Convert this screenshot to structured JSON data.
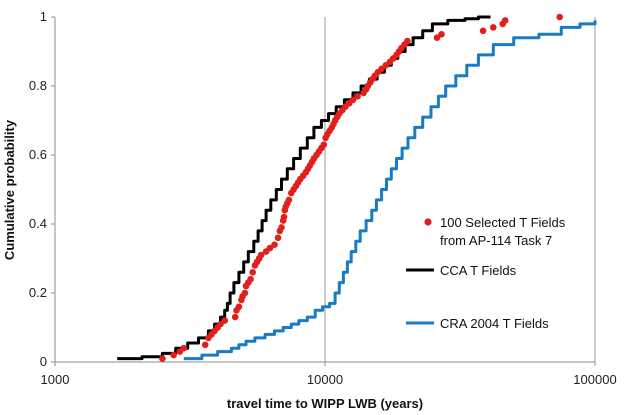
{
  "chart_data": {
    "type": "line",
    "xlabel": "travel time to WIPP LWB (years)",
    "ylabel": "Cumulative probability",
    "xscale": "log",
    "xlim": [
      1000,
      100000
    ],
    "ylim": [
      0,
      1
    ],
    "x_ticks": [
      {
        "value": 1000,
        "label": "1000"
      },
      {
        "value": 10000,
        "label": "10000"
      },
      {
        "value": 100000,
        "label": "100000"
      }
    ],
    "y_ticks": [
      {
        "value": 0,
        "label": "0"
      },
      {
        "value": 0.2,
        "label": "0.2"
      },
      {
        "value": 0.4,
        "label": "0.4"
      },
      {
        "value": 0.6,
        "label": "0.6"
      },
      {
        "value": 0.8,
        "label": "0.8"
      },
      {
        "value": 1,
        "label": "1"
      }
    ],
    "grid": {
      "x": true,
      "y": false
    },
    "legend_position": "right",
    "series": [
      {
        "name": "100 Selected T Fields from AP-114 Task 7",
        "legend_lines": [
          "100 Selected T Fields",
          "from AP-114 Task 7"
        ],
        "kind": "scatter",
        "color": "#e0201b",
        "points": [
          [
            2500,
            0.01
          ],
          [
            2750,
            0.02
          ],
          [
            2900,
            0.03
          ],
          [
            3000,
            0.04
          ],
          [
            3600,
            0.05
          ],
          [
            3700,
            0.07
          ],
          [
            3800,
            0.08
          ],
          [
            3900,
            0.09
          ],
          [
            4000,
            0.1
          ],
          [
            4100,
            0.11
          ],
          [
            4250,
            0.12
          ],
          [
            4650,
            0.13
          ],
          [
            4700,
            0.15
          ],
          [
            4800,
            0.16
          ],
          [
            4900,
            0.18
          ],
          [
            4950,
            0.19
          ],
          [
            5050,
            0.2
          ],
          [
            5100,
            0.22
          ],
          [
            5200,
            0.23
          ],
          [
            5300,
            0.24
          ],
          [
            5400,
            0.26
          ],
          [
            5500,
            0.28
          ],
          [
            5600,
            0.29
          ],
          [
            5700,
            0.3
          ],
          [
            5800,
            0.31
          ],
          [
            6050,
            0.32
          ],
          [
            6250,
            0.33
          ],
          [
            6500,
            0.34
          ],
          [
            6700,
            0.36
          ],
          [
            6800,
            0.38
          ],
          [
            6900,
            0.39
          ],
          [
            7000,
            0.41
          ],
          [
            7050,
            0.42
          ],
          [
            7100,
            0.44
          ],
          [
            7150,
            0.45
          ],
          [
            7250,
            0.46
          ],
          [
            7350,
            0.47
          ],
          [
            7500,
            0.49
          ],
          [
            7650,
            0.5
          ],
          [
            7800,
            0.51
          ],
          [
            7950,
            0.52
          ],
          [
            8100,
            0.53
          ],
          [
            8300,
            0.54
          ],
          [
            8500,
            0.55
          ],
          [
            8650,
            0.56
          ],
          [
            8800,
            0.57
          ],
          [
            8950,
            0.58
          ],
          [
            9100,
            0.59
          ],
          [
            9300,
            0.6
          ],
          [
            9500,
            0.61
          ],
          [
            9700,
            0.62
          ],
          [
            9900,
            0.63
          ],
          [
            10050,
            0.65
          ],
          [
            10200,
            0.66
          ],
          [
            10400,
            0.67
          ],
          [
            10600,
            0.68
          ],
          [
            10750,
            0.69
          ],
          [
            10900,
            0.7
          ],
          [
            11100,
            0.71
          ],
          [
            11300,
            0.72
          ],
          [
            11600,
            0.73
          ],
          [
            11900,
            0.74
          ],
          [
            12300,
            0.75
          ],
          [
            12700,
            0.76
          ],
          [
            13200,
            0.77
          ],
          [
            13900,
            0.78
          ],
          [
            14200,
            0.79
          ],
          [
            14400,
            0.8
          ],
          [
            14700,
            0.81
          ],
          [
            15000,
            0.82
          ],
          [
            15300,
            0.83
          ],
          [
            15700,
            0.84
          ],
          [
            16200,
            0.85
          ],
          [
            16800,
            0.86
          ],
          [
            17400,
            0.87
          ],
          [
            17900,
            0.88
          ],
          [
            18400,
            0.89
          ],
          [
            18800,
            0.9
          ],
          [
            19200,
            0.91
          ],
          [
            19700,
            0.92
          ],
          [
            20200,
            0.93
          ],
          [
            26000,
            0.94
          ],
          [
            27000,
            0.95
          ],
          [
            38500,
            0.96
          ],
          [
            42000,
            0.97
          ],
          [
            45500,
            0.98
          ],
          [
            46500,
            0.99
          ],
          [
            74000,
            1.0
          ]
        ]
      },
      {
        "name": "CCA T Fields",
        "kind": "line",
        "color": "#000000",
        "points": [
          [
            1700,
            0.01
          ],
          [
            2100,
            0.015
          ],
          [
            2500,
            0.025
          ],
          [
            2800,
            0.04
          ],
          [
            3100,
            0.055
          ],
          [
            3400,
            0.07
          ],
          [
            3700,
            0.09
          ],
          [
            3900,
            0.11
          ],
          [
            4100,
            0.13
          ],
          [
            4250,
            0.15
          ],
          [
            4350,
            0.17
          ],
          [
            4450,
            0.2
          ],
          [
            4600,
            0.23
          ],
          [
            4800,
            0.26
          ],
          [
            5000,
            0.29
          ],
          [
            5200,
            0.32
          ],
          [
            5450,
            0.35
          ],
          [
            5650,
            0.38
          ],
          [
            5850,
            0.41
          ],
          [
            6050,
            0.44
          ],
          [
            6300,
            0.47
          ],
          [
            6600,
            0.5
          ],
          [
            6900,
            0.53
          ],
          [
            7250,
            0.56
          ],
          [
            7650,
            0.59
          ],
          [
            8100,
            0.62
          ],
          [
            8600,
            0.65
          ],
          [
            9100,
            0.68
          ],
          [
            9700,
            0.7
          ],
          [
            10300,
            0.72
          ],
          [
            11000,
            0.74
          ],
          [
            11800,
            0.76
          ],
          [
            12700,
            0.78
          ],
          [
            13600,
            0.8
          ],
          [
            14600,
            0.82
          ],
          [
            15600,
            0.84
          ],
          [
            16600,
            0.86
          ],
          [
            17600,
            0.88
          ],
          [
            18600,
            0.9
          ],
          [
            19800,
            0.92
          ],
          [
            21200,
            0.94
          ],
          [
            23000,
            0.96
          ],
          [
            25000,
            0.98
          ],
          [
            28500,
            0.99
          ],
          [
            33000,
            0.995
          ],
          [
            37000,
            1.0
          ],
          [
            41000,
            1.0
          ]
        ]
      },
      {
        "name": "CRA 2004 T Fields",
        "kind": "line",
        "color": "#1a7ac4",
        "points": [
          [
            3000,
            0.01
          ],
          [
            3500,
            0.02
          ],
          [
            4000,
            0.03
          ],
          [
            4500,
            0.04
          ],
          [
            4800,
            0.05
          ],
          [
            5100,
            0.06
          ],
          [
            5500,
            0.07
          ],
          [
            6000,
            0.08
          ],
          [
            6500,
            0.09
          ],
          [
            7000,
            0.1
          ],
          [
            7500,
            0.11
          ],
          [
            8000,
            0.12
          ],
          [
            8600,
            0.13
          ],
          [
            9200,
            0.15
          ],
          [
            9800,
            0.16
          ],
          [
            10400,
            0.17
          ],
          [
            10900,
            0.2
          ],
          [
            11300,
            0.23
          ],
          [
            11700,
            0.26
          ],
          [
            12100,
            0.29
          ],
          [
            12500,
            0.32
          ],
          [
            13000,
            0.35
          ],
          [
            13500,
            0.38
          ],
          [
            14200,
            0.41
          ],
          [
            14900,
            0.44
          ],
          [
            15500,
            0.47
          ],
          [
            16200,
            0.5
          ],
          [
            16900,
            0.53
          ],
          [
            17600,
            0.56
          ],
          [
            18400,
            0.59
          ],
          [
            19300,
            0.62
          ],
          [
            20300,
            0.65
          ],
          [
            21500,
            0.68
          ],
          [
            23000,
            0.71
          ],
          [
            24700,
            0.74
          ],
          [
            26300,
            0.77
          ],
          [
            28000,
            0.8
          ],
          [
            30500,
            0.83
          ],
          [
            33500,
            0.86
          ],
          [
            37000,
            0.89
          ],
          [
            42000,
            0.92
          ],
          [
            50000,
            0.94
          ],
          [
            62000,
            0.95
          ],
          [
            75000,
            0.97
          ],
          [
            88000,
            0.98
          ],
          [
            100000,
            0.99
          ]
        ]
      }
    ]
  }
}
